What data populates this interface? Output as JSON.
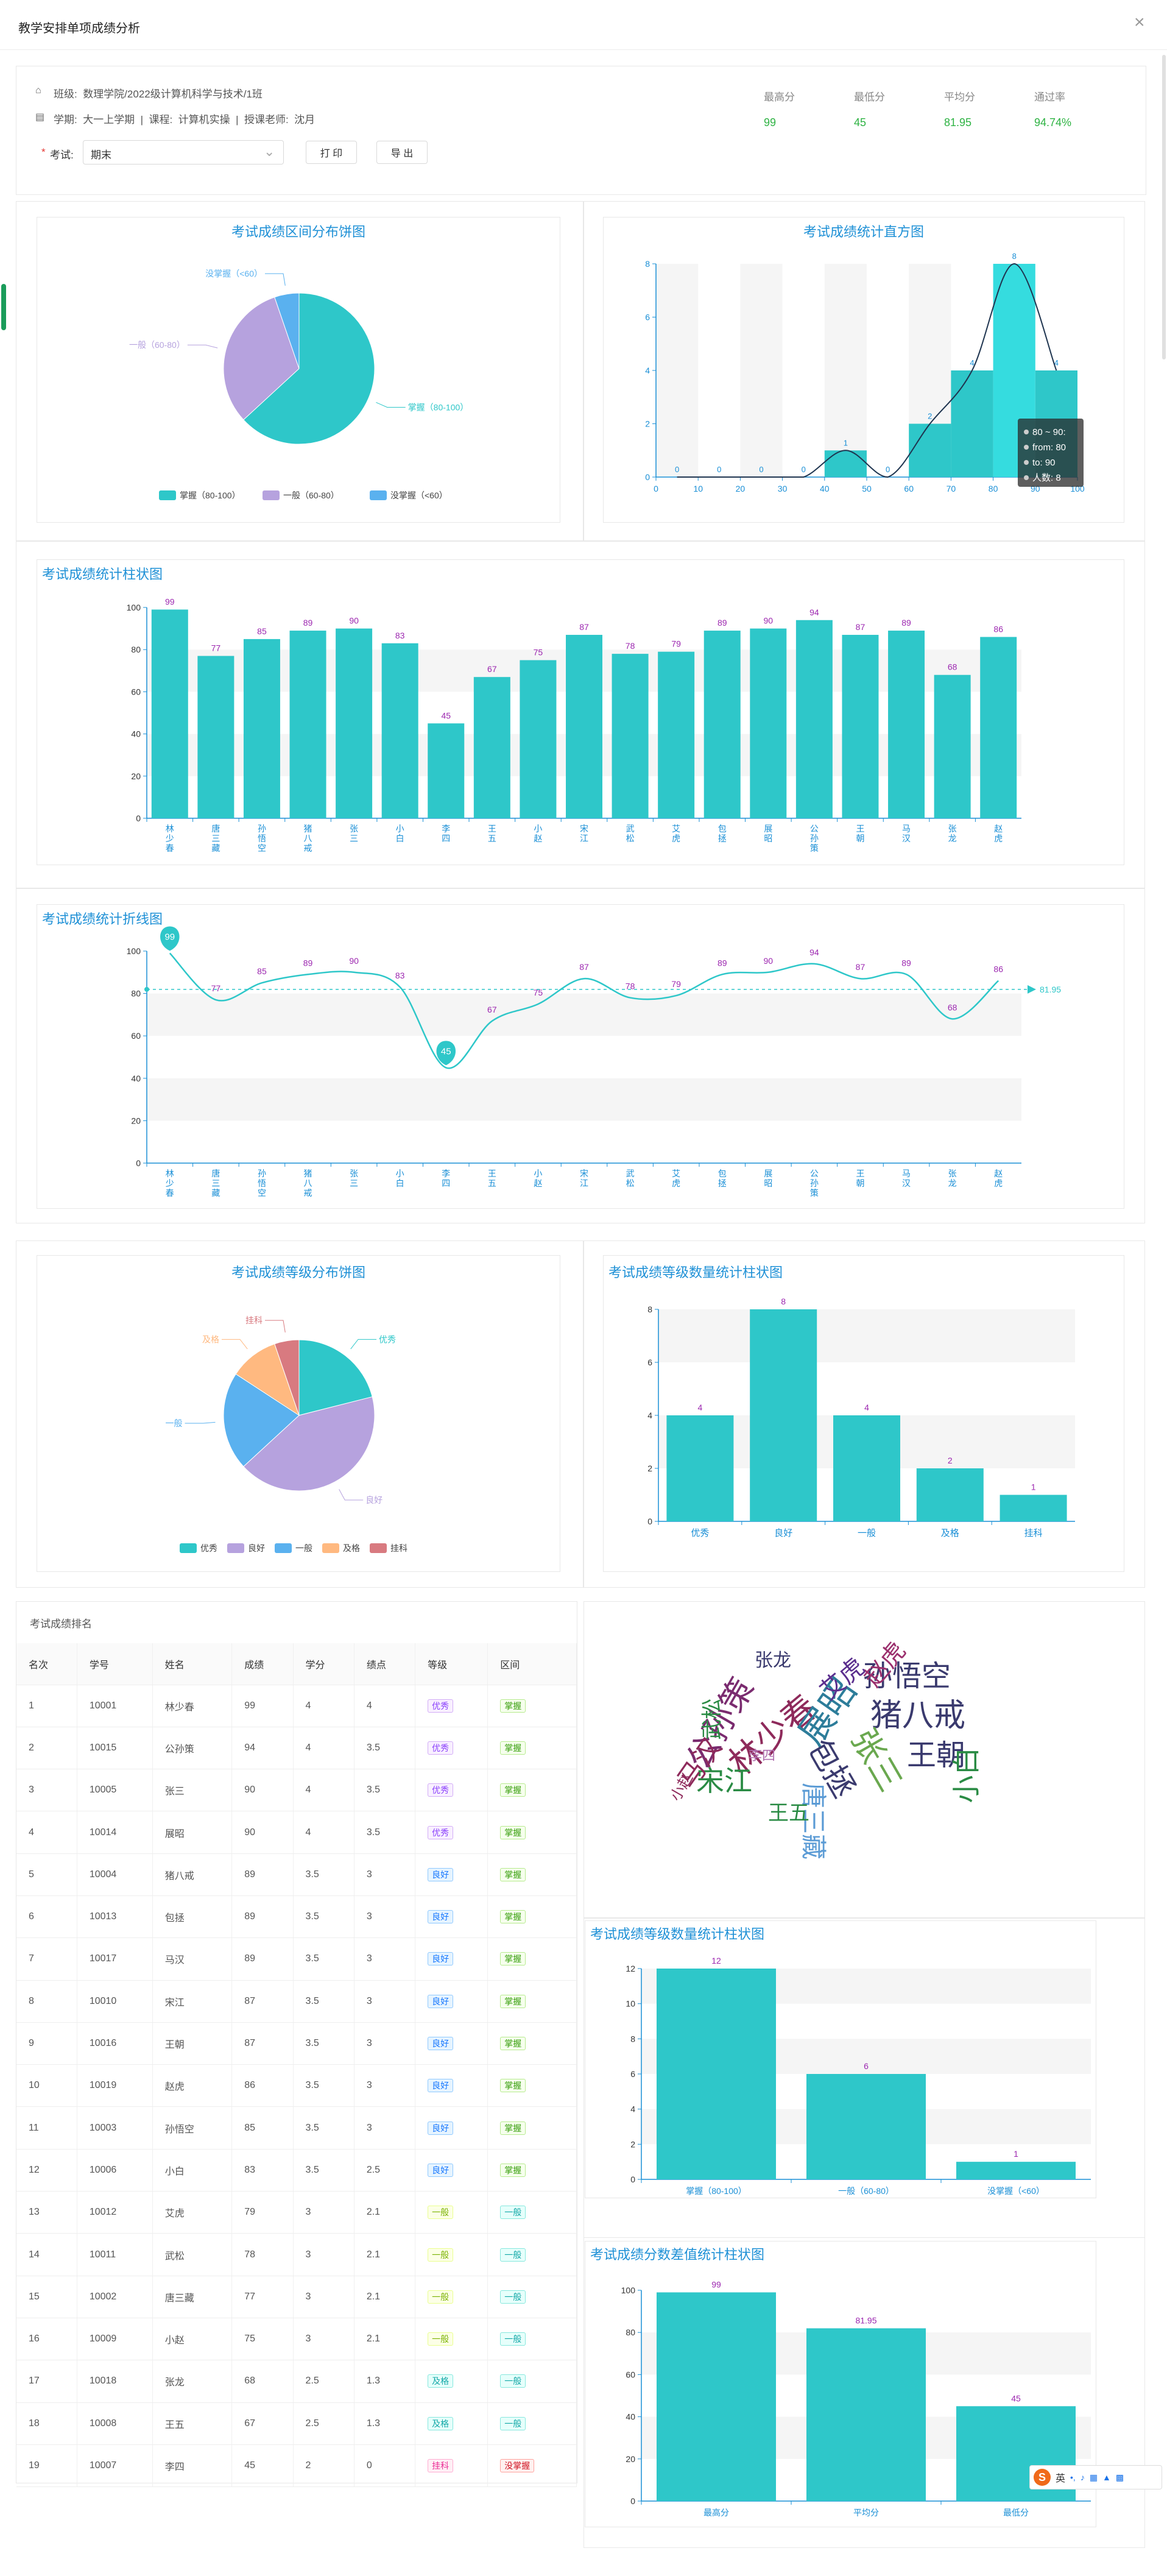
{
  "dialog": {
    "title": "教学安排单项成绩分析",
    "close": "×"
  },
  "info": {
    "class_label": "班级:",
    "class_value": "数理学院/2022级计算机科学与技术/1班",
    "term_line": "学期:  大一上学期  |  课程:  计算机实操  |  授课老师:  沈月",
    "exam_required": "*",
    "exam_label": "考试:",
    "exam_value": "期末",
    "print": "打 印",
    "export": "导 出"
  },
  "stats": [
    {
      "label": "最高分",
      "value": "99"
    },
    {
      "label": "最低分",
      "value": "45"
    },
    {
      "label": "平均分",
      "value": "81.95"
    },
    {
      "label": "通过率",
      "value": "94.74%"
    }
  ],
  "colors": {
    "teal": "#2ec7c9",
    "purple": "#b6a2de",
    "blue": "#5ab1ef",
    "orange": "#ffb980",
    "red": "#d87a80",
    "label": "#9c27b0",
    "axis": "#1a8fd6"
  },
  "students": [
    {
      "name": "林少春",
      "score": 99
    },
    {
      "name": "唐三藏",
      "score": 77
    },
    {
      "name": "孙悟空",
      "score": 85
    },
    {
      "name": "猪八戒",
      "score": 89
    },
    {
      "name": "张三",
      "score": 90
    },
    {
      "name": "小白",
      "score": 83
    },
    {
      "name": "李四",
      "score": 45
    },
    {
      "name": "王五",
      "score": 67
    },
    {
      "name": "小赵",
      "score": 75
    },
    {
      "name": "宋江",
      "score": 87
    },
    {
      "name": "武松",
      "score": 78
    },
    {
      "name": "艾虎",
      "score": 79
    },
    {
      "name": "包拯",
      "score": 89
    },
    {
      "name": "展昭",
      "score": 90
    },
    {
      "name": "公孙策",
      "score": 94
    },
    {
      "name": "王朝",
      "score": 87
    },
    {
      "name": "马汉",
      "score": 89
    },
    {
      "name": "张龙",
      "score": 68
    },
    {
      "name": "赵虎",
      "score": 86
    }
  ],
  "chart_data": [
    {
      "id": "pie_range",
      "type": "pie",
      "title": "考试成绩区间分布饼图",
      "slices": [
        {
          "name": "掌握（80-100）",
          "value": 12
        },
        {
          "name": "一般（60-80）",
          "value": 6
        },
        {
          "name": "没掌握（<60）",
          "value": 1
        }
      ],
      "legend": "bottom"
    },
    {
      "id": "histogram",
      "type": "bar",
      "title": "考试成绩统计直方图",
      "bins": [
        "0-10",
        "10-20",
        "20-30",
        "30-40",
        "40-50",
        "50-60",
        "60-70",
        "70-80",
        "80-90",
        "90-100"
      ],
      "values": [
        0,
        0,
        0,
        0,
        1,
        0,
        2,
        4,
        8,
        4
      ],
      "xticks": [
        0,
        10,
        20,
        30,
        40,
        50,
        60,
        70,
        80,
        90,
        100
      ],
      "ylim": [
        0,
        8
      ],
      "yticks": [
        0,
        2,
        4,
        6,
        8
      ],
      "tooltip": {
        "line1": "80 ~ 90:",
        "line2": "from: 80",
        "line3": "to: 90",
        "line4": "人数: 8"
      }
    },
    {
      "id": "score_bar",
      "type": "bar",
      "title": "考试成绩统计柱状图",
      "ylim": [
        0,
        100
      ],
      "yticks": [
        0,
        20,
        40,
        60,
        80,
        100
      ]
    },
    {
      "id": "score_line",
      "type": "line",
      "title": "考试成绩统计折线图",
      "ylim": [
        0,
        100
      ],
      "yticks": [
        0,
        20,
        40,
        60,
        80,
        100
      ],
      "average": 81.95,
      "average_label": "81.95",
      "max_pin": "99",
      "min_pin": "45"
    },
    {
      "id": "pie_grade",
      "type": "pie",
      "title": "考试成绩等级分布饼图",
      "slices": [
        {
          "name": "优秀",
          "value": 4
        },
        {
          "name": "良好",
          "value": 8
        },
        {
          "name": "一般",
          "value": 4
        },
        {
          "name": "及格",
          "value": 2
        },
        {
          "name": "挂科",
          "value": 1
        }
      ],
      "legend": "bottom"
    },
    {
      "id": "grade_bar",
      "type": "bar",
      "title": "考试成绩等级数量统计柱状图",
      "categories": [
        "优秀",
        "良好",
        "一般",
        "及格",
        "挂科"
      ],
      "values": [
        4,
        8,
        4,
        2,
        1
      ],
      "ylim": [
        0,
        8
      ],
      "yticks": [
        0,
        2,
        4,
        6,
        8
      ]
    },
    {
      "id": "range_bar",
      "type": "bar",
      "title": "考试成绩等级数量统计柱状图",
      "categories": [
        "掌握（80-100）",
        "一般（60-80）",
        "没掌握（<60）"
      ],
      "values": [
        12,
        6,
        1
      ],
      "ylim": [
        0,
        12
      ],
      "yticks": [
        0,
        2,
        4,
        6,
        8,
        10,
        12
      ]
    },
    {
      "id": "diff_bar",
      "type": "bar",
      "title": "考试成绩分数差值统计柱状图",
      "categories": [
        "最高分",
        "平均分",
        "最低分"
      ],
      "values": [
        99,
        81.95,
        45
      ],
      "ylim": [
        0,
        100
      ],
      "yticks": [
        0,
        20,
        40,
        60,
        80,
        100
      ]
    }
  ],
  "ranking": {
    "title": "考试成绩排名",
    "headers": [
      "名次",
      "学号",
      "姓名",
      "成绩",
      "学分",
      "绩点",
      "等级",
      "区间"
    ],
    "rows": [
      [
        "1",
        "10001",
        "林少春",
        "99",
        "4",
        "4",
        "优秀",
        "掌握"
      ],
      [
        "2",
        "10015",
        "公孙策",
        "94",
        "4",
        "3.5",
        "优秀",
        "掌握"
      ],
      [
        "3",
        "10005",
        "张三",
        "90",
        "4",
        "3.5",
        "优秀",
        "掌握"
      ],
      [
        "4",
        "10014",
        "展昭",
        "90",
        "4",
        "3.5",
        "优秀",
        "掌握"
      ],
      [
        "5",
        "10004",
        "猪八戒",
        "89",
        "3.5",
        "3",
        "良好",
        "掌握"
      ],
      [
        "6",
        "10013",
        "包拯",
        "89",
        "3.5",
        "3",
        "良好",
        "掌握"
      ],
      [
        "7",
        "10017",
        "马汉",
        "89",
        "3.5",
        "3",
        "良好",
        "掌握"
      ],
      [
        "8",
        "10010",
        "宋江",
        "87",
        "3.5",
        "3",
        "良好",
        "掌握"
      ],
      [
        "9",
        "10016",
        "王朝",
        "87",
        "3.5",
        "3",
        "良好",
        "掌握"
      ],
      [
        "10",
        "10019",
        "赵虎",
        "86",
        "3.5",
        "3",
        "良好",
        "掌握"
      ],
      [
        "11",
        "10003",
        "孙悟空",
        "85",
        "3.5",
        "3",
        "良好",
        "掌握"
      ],
      [
        "12",
        "10006",
        "小白",
        "83",
        "3.5",
        "2.5",
        "良好",
        "掌握"
      ],
      [
        "13",
        "10012",
        "艾虎",
        "79",
        "3",
        "2.1",
        "一般",
        "一般"
      ],
      [
        "14",
        "10011",
        "武松",
        "78",
        "3",
        "2.1",
        "一般",
        "一般"
      ],
      [
        "15",
        "10002",
        "唐三藏",
        "77",
        "3",
        "2.1",
        "一般",
        "一般"
      ],
      [
        "16",
        "10009",
        "小赵",
        "75",
        "3",
        "2.1",
        "一般",
        "一般"
      ],
      [
        "17",
        "10018",
        "张龙",
        "68",
        "2.5",
        "1.3",
        "及格",
        "一般"
      ],
      [
        "18",
        "10008",
        "王五",
        "67",
        "2.5",
        "1.3",
        "及格",
        "一般"
      ],
      [
        "19",
        "10007",
        "李四",
        "45",
        "2",
        "0",
        "挂科",
        "没掌握"
      ]
    ]
  },
  "wordcloud": [
    {
      "text": "孙悟空",
      "color": "#3a3a6e"
    },
    {
      "text": "猪八戒",
      "color": "#3a3a6e"
    },
    {
      "text": "王朝",
      "color": "#3a3a6e"
    },
    {
      "text": "林少春",
      "color": "#8e2a5b"
    },
    {
      "text": "展昭",
      "color": "#2d7d9a"
    },
    {
      "text": "公孙策",
      "color": "#7a2b6f"
    },
    {
      "text": "宋江",
      "color": "#2a8b44"
    },
    {
      "text": "张三",
      "color": "#6aa84f"
    },
    {
      "text": "包拯",
      "color": "#3a3a6e"
    },
    {
      "text": "马汉",
      "color": "#8e2a5b"
    },
    {
      "text": "小白",
      "color": "#2a8b44"
    },
    {
      "text": "赵虎",
      "color": "#9b2f6d"
    },
    {
      "text": "艾虎",
      "color": "#5b2f8e"
    },
    {
      "text": "武松",
      "color": "#2a8b44"
    },
    {
      "text": "张龙",
      "color": "#3a3a6e"
    },
    {
      "text": "唐三藏",
      "color": "#5b9bd5"
    },
    {
      "text": "小赵",
      "color": "#8e2a5b"
    },
    {
      "text": "王五",
      "color": "#2a8b44"
    },
    {
      "text": "李四",
      "color": "#b06fb0"
    }
  ],
  "ime": {
    "logo": "S",
    "lang": "英"
  }
}
